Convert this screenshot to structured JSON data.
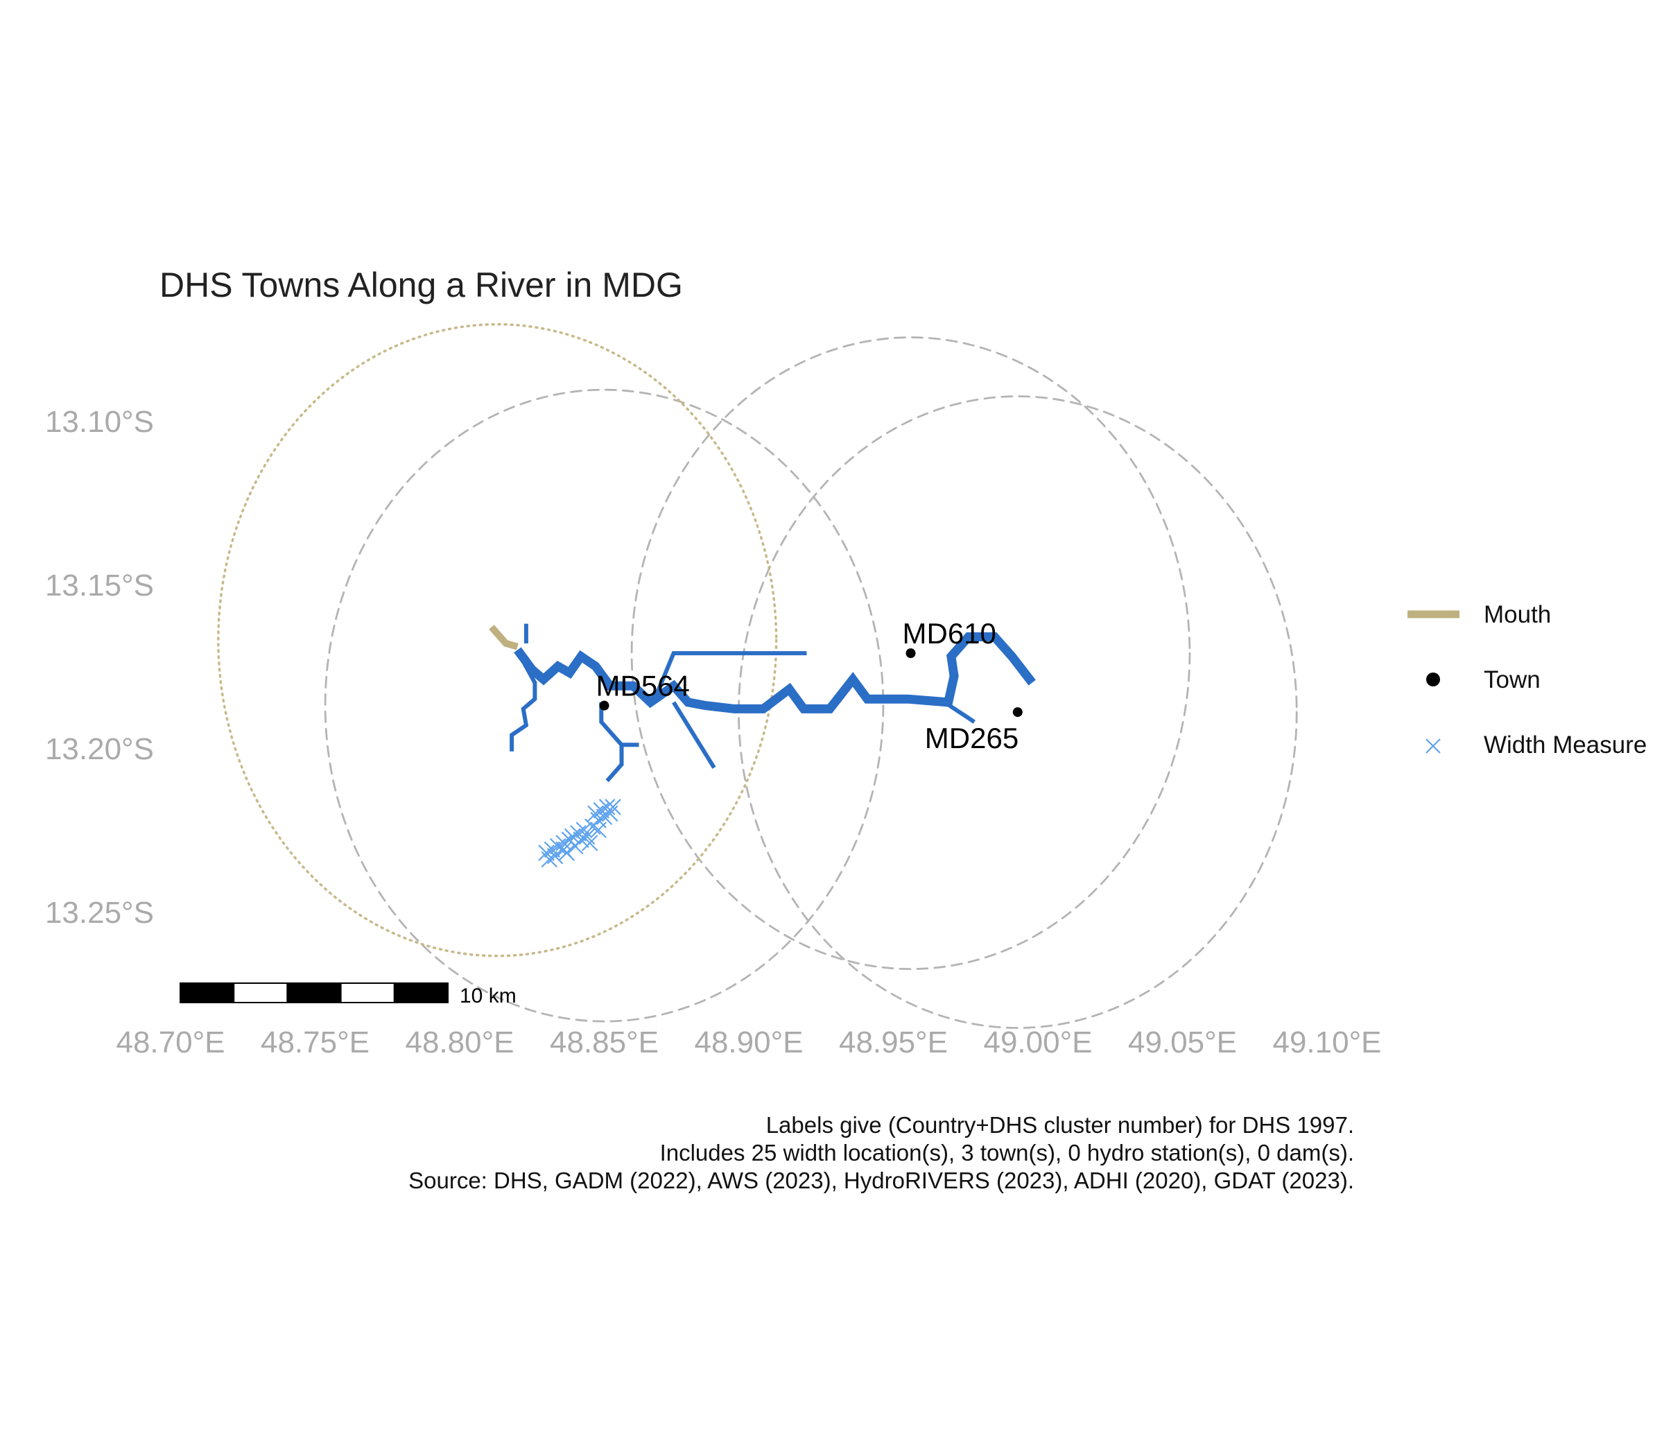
{
  "title": "DHS Towns Along a River in MDG",
  "colors": {
    "river": "#2b6ec6",
    "mouth": "#bfb07f",
    "town": "#000000",
    "width_measure": "#5fa3ee",
    "buffer": "#b4b4b4",
    "mouth_buffer": "#c7b98a",
    "axis_text": "#aaaaaa"
  },
  "map": {
    "crs_units": "degrees",
    "x_ticks": [
      {
        "value": 48.7,
        "label": "48.70°E"
      },
      {
        "value": 48.75,
        "label": "48.75°E"
      },
      {
        "value": 48.8,
        "label": "48.80°E"
      },
      {
        "value": 48.85,
        "label": "48.85°E"
      },
      {
        "value": 48.9,
        "label": "48.90°E"
      },
      {
        "value": 48.95,
        "label": "48.95°E"
      },
      {
        "value": 49.0,
        "label": "49.00°E"
      },
      {
        "value": 49.05,
        "label": "49.05°E"
      },
      {
        "value": 49.1,
        "label": "49.10°E"
      }
    ],
    "y_ticks": [
      {
        "value": -13.1,
        "label": "13.10°S"
      },
      {
        "value": -13.15,
        "label": "13.15°S"
      },
      {
        "value": -13.2,
        "label": "13.20°S"
      },
      {
        "value": -13.25,
        "label": "13.25°S"
      }
    ],
    "towns": [
      {
        "id": "MD564",
        "lon": 48.85,
        "lat": -13.187,
        "label": "MD564"
      },
      {
        "id": "MD610",
        "lon": 48.956,
        "lat": -13.171,
        "label": "MD610"
      },
      {
        "id": "MD265",
        "lon": 48.993,
        "lat": -13.189,
        "label": "MD265"
      }
    ],
    "buffers": [
      {
        "kind": "town",
        "center_lon": 48.85,
        "center_lat": -13.187,
        "radius_deg": 0.0965
      },
      {
        "kind": "town",
        "center_lon": 48.956,
        "center_lat": -13.171,
        "radius_deg": 0.0965
      },
      {
        "kind": "town",
        "center_lon": 48.993,
        "center_lat": -13.189,
        "radius_deg": 0.0965
      },
      {
        "kind": "mouth",
        "center_lon": 48.813,
        "center_lat": -13.167,
        "radius_deg": 0.0965
      }
    ],
    "mouth_segment": [
      [
        48.811,
        -13.163
      ],
      [
        48.816,
        -13.168
      ],
      [
        48.82,
        -13.169
      ]
    ],
    "river_segments": [
      {
        "order": "main",
        "coords": [
          [
            48.82,
            -13.17
          ],
          [
            48.825,
            -13.176
          ],
          [
            48.829,
            -13.179
          ],
          [
            48.834,
            -13.175
          ],
          [
            48.838,
            -13.177
          ],
          [
            48.842,
            -13.172
          ],
          [
            48.847,
            -13.175
          ],
          [
            48.852,
            -13.181
          ],
          [
            48.86,
            -13.181
          ],
          [
            48.866,
            -13.186
          ],
          [
            48.874,
            -13.181
          ],
          [
            48.879,
            -13.186
          ],
          [
            48.885,
            -13.187
          ],
          [
            48.895,
            -13.188
          ],
          [
            48.905,
            -13.188
          ],
          [
            48.914,
            -13.182
          ],
          [
            48.919,
            -13.188
          ],
          [
            48.928,
            -13.188
          ],
          [
            48.936,
            -13.179
          ],
          [
            48.941,
            -13.185
          ],
          [
            48.955,
            -13.185
          ],
          [
            48.969,
            -13.186
          ],
          [
            48.971,
            -13.178
          ],
          [
            48.97,
            -13.172
          ],
          [
            48.976,
            -13.166
          ],
          [
            48.985,
            -13.166
          ],
          [
            48.991,
            -13.172
          ],
          [
            48.998,
            -13.18
          ]
        ]
      },
      {
        "order": "trib",
        "coords": [
          [
            48.867,
            -13.186
          ],
          [
            48.874,
            -13.171
          ],
          [
            48.92,
            -13.171
          ]
        ]
      },
      {
        "order": "trib",
        "coords": [
          [
            48.874,
            -13.186
          ],
          [
            48.888,
            -13.206
          ]
        ]
      },
      {
        "order": "trib",
        "coords": [
          [
            48.966,
            -13.185
          ],
          [
            48.978,
            -13.192
          ]
        ]
      },
      {
        "order": "trib",
        "coords": [
          [
            48.823,
            -13.162
          ],
          [
            48.823,
            -13.168
          ]
        ]
      },
      {
        "order": "trib",
        "coords": [
          [
            48.821,
            -13.172
          ],
          [
            48.826,
            -13.18
          ],
          [
            48.826,
            -13.185
          ],
          [
            48.822,
            -13.188
          ],
          [
            48.823,
            -13.193
          ],
          [
            48.818,
            -13.196
          ],
          [
            48.818,
            -13.201
          ]
        ]
      },
      {
        "order": "trib",
        "coords": [
          [
            48.849,
            -13.186
          ],
          [
            48.849,
            -13.192
          ],
          [
            48.856,
            -13.199
          ],
          [
            48.856,
            -13.205
          ],
          [
            48.851,
            -13.21
          ]
        ]
      },
      {
        "order": "trib",
        "coords": [
          [
            48.856,
            -13.199
          ],
          [
            48.862,
            -13.199
          ]
        ]
      }
    ],
    "width_measures": [
      [
        48.83,
        -13.232
      ],
      [
        48.832,
        -13.231
      ],
      [
        48.834,
        -13.23
      ],
      [
        48.836,
        -13.229
      ],
      [
        48.838,
        -13.228
      ],
      [
        48.836,
        -13.231
      ],
      [
        48.833,
        -13.233
      ],
      [
        48.84,
        -13.23
      ],
      [
        48.842,
        -13.228
      ],
      [
        48.844,
        -13.227
      ],
      [
        48.841,
        -13.226
      ],
      [
        48.843,
        -13.225
      ],
      [
        48.846,
        -13.224
      ],
      [
        48.848,
        -13.222
      ],
      [
        48.85,
        -13.221
      ],
      [
        48.847,
        -13.22
      ],
      [
        48.849,
        -13.219
      ],
      [
        48.851,
        -13.218
      ],
      [
        48.853,
        -13.218
      ],
      [
        48.845,
        -13.229
      ],
      [
        48.839,
        -13.227
      ],
      [
        48.852,
        -13.22
      ],
      [
        48.837,
        -13.232
      ],
      [
        48.831,
        -13.234
      ],
      [
        48.848,
        -13.225
      ]
    ],
    "scale_bar": {
      "label": "10 km",
      "segments": 5
    }
  },
  "legend": {
    "items": [
      {
        "key": "mouth",
        "label": "Mouth"
      },
      {
        "key": "town",
        "label": "Town"
      },
      {
        "key": "width",
        "label": "Width Measure"
      }
    ]
  },
  "caption": [
    "Labels give (Country+DHS cluster number) for DHS 1997.",
    "Includes 25 width location(s), 3 town(s), 0 hydro station(s), 0 dam(s).",
    "Source: DHS, GADM (2022), AWS (2023), HydroRIVERS (2023), ADHI (2020), GDAT (2023)."
  ]
}
